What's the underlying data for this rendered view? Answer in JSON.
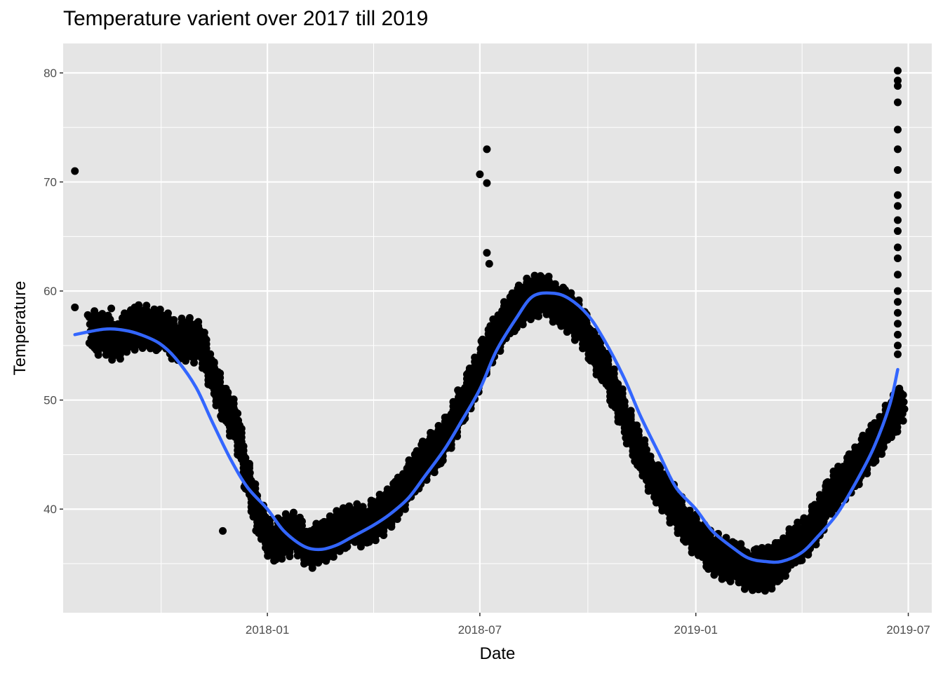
{
  "chart_data": {
    "type": "scatter",
    "title": "Temperature varient over 2017 till 2019",
    "xlabel": "Date",
    "ylabel": "Temperature",
    "x_tick_labels": [
      "2018-01",
      "2018-07",
      "2019-01",
      "2019-07"
    ],
    "y_tick_labels": [
      "40",
      "50",
      "60",
      "70",
      "80"
    ],
    "xlim": [
      "2017-07-11",
      "2019-07-21"
    ],
    "ylim": [
      30.5,
      82.7
    ],
    "grid": true,
    "legend": "none",
    "background_color": "#e5e5e5",
    "grid_color": "#ffffff",
    "point_color": "#000000",
    "trend_color": "#3366ff",
    "series": [
      {
        "kind": "points",
        "band_halfwidth_units": 1.4,
        "x": [
          "2017-08-05",
          "2017-08-15",
          "2017-08-25",
          "2017-09-05",
          "2017-09-15",
          "2017-09-25",
          "2017-10-05",
          "2017-10-15",
          "2017-10-25",
          "2017-11-05",
          "2017-11-15",
          "2017-11-25",
          "2017-12-05",
          "2017-12-15",
          "2017-12-25",
          "2018-01-05",
          "2018-01-15",
          "2018-01-25",
          "2018-02-05",
          "2018-02-15",
          "2018-02-25",
          "2018-03-05",
          "2018-03-15",
          "2018-03-25",
          "2018-04-05",
          "2018-04-15",
          "2018-04-25",
          "2018-05-05",
          "2018-05-15",
          "2018-05-25",
          "2018-06-05",
          "2018-06-15",
          "2018-06-25",
          "2018-07-05",
          "2018-07-15",
          "2018-07-25",
          "2018-08-05",
          "2018-08-15",
          "2018-08-25",
          "2018-09-05",
          "2018-09-15",
          "2018-09-25",
          "2018-10-05",
          "2018-10-15",
          "2018-10-25",
          "2018-11-05",
          "2018-11-15",
          "2018-11-25",
          "2018-12-05",
          "2018-12-15",
          "2018-12-25",
          "2019-01-05",
          "2019-01-15",
          "2019-01-25",
          "2019-02-05",
          "2019-02-15",
          "2019-02-25",
          "2019-03-05",
          "2019-03-15",
          "2019-03-25",
          "2019-04-05",
          "2019-04-15",
          "2019-04-25",
          "2019-05-05",
          "2019-05-15",
          "2019-05-25",
          "2019-06-05",
          "2019-06-15",
          "2019-06-25"
        ],
        "y": [
          56.2,
          56.0,
          55.5,
          56.3,
          56.8,
          56.6,
          56.2,
          55.5,
          55.6,
          55.2,
          52.5,
          49.5,
          47.8,
          43.0,
          39.0,
          37.0,
          37.5,
          37.8,
          36.5,
          36.8,
          37.5,
          38.2,
          38.4,
          38.6,
          39.2,
          40.0,
          41.5,
          43.0,
          44.5,
          45.5,
          47.0,
          49.5,
          51.5,
          54.0,
          56.0,
          57.5,
          58.8,
          59.5,
          59.5,
          59.0,
          58.0,
          57.0,
          55.0,
          53.0,
          50.5,
          47.5,
          45.0,
          43.0,
          41.5,
          40.0,
          38.5,
          37.0,
          36.0,
          35.5,
          35.0,
          34.5,
          34.5,
          34.5,
          35.5,
          36.5,
          37.5,
          39.0,
          41.0,
          42.5,
          43.5,
          45.0,
          46.5,
          48.0,
          49.5
        ]
      },
      {
        "kind": "points",
        "x": [
          "2017-07-21",
          "2017-07-21",
          "2017-08-01",
          "2017-08-10",
          "2017-08-21",
          "2017-09-10",
          "2017-11-24",
          "2018-07-01",
          "2018-07-07",
          "2018-07-07",
          "2018-07-07",
          "2018-07-09",
          "2019-06-22",
          "2019-06-22",
          "2019-06-22",
          "2019-06-22",
          "2019-06-22",
          "2019-06-22",
          "2019-06-22",
          "2019-06-22",
          "2019-06-22",
          "2019-06-22",
          "2019-06-22",
          "2019-06-22",
          "2019-06-22",
          "2019-06-22",
          "2019-06-22",
          "2019-06-22",
          "2019-06-22",
          "2019-06-22",
          "2019-06-22",
          "2019-06-22",
          "2019-06-22"
        ],
        "y": [
          71.0,
          58.5,
          57.8,
          57.5,
          58.4,
          58.5,
          38.0,
          70.7,
          73.0,
          69.9,
          63.5,
          62.5,
          80.2,
          79.3,
          78.8,
          77.3,
          74.8,
          73.0,
          71.1,
          68.8,
          67.8,
          66.5,
          65.5,
          64.0,
          63.0,
          61.5,
          60.0,
          59.0,
          58.0,
          57.0,
          56.0,
          55.0,
          54.2
        ]
      },
      {
        "kind": "smooth",
        "x": [
          "2017-07-21",
          "2017-08-15",
          "2017-09-01",
          "2017-09-15",
          "2017-10-01",
          "2017-10-15",
          "2017-11-01",
          "2017-11-15",
          "2017-12-01",
          "2017-12-15",
          "2018-01-01",
          "2018-01-15",
          "2018-02-01",
          "2018-02-15",
          "2018-03-01",
          "2018-03-15",
          "2018-04-01",
          "2018-04-15",
          "2018-05-01",
          "2018-05-15",
          "2018-06-01",
          "2018-06-15",
          "2018-07-01",
          "2018-07-15",
          "2018-08-01",
          "2018-08-15",
          "2018-09-01",
          "2018-09-15",
          "2018-10-01",
          "2018-10-15",
          "2018-11-01",
          "2018-11-15",
          "2018-12-01",
          "2018-12-15",
          "2019-01-01",
          "2019-01-15",
          "2019-02-01",
          "2019-02-15",
          "2019-03-01",
          "2019-03-15",
          "2019-04-01",
          "2019-04-15",
          "2019-05-01",
          "2019-05-15",
          "2019-06-01",
          "2019-06-15",
          "2019-06-22"
        ],
        "y": [
          56.0,
          56.5,
          56.4,
          56.0,
          55.2,
          53.8,
          51.2,
          48.0,
          44.5,
          42.0,
          40.0,
          38.0,
          36.6,
          36.3,
          36.7,
          37.5,
          38.5,
          39.5,
          41.0,
          43.0,
          45.5,
          48.0,
          51.0,
          54.5,
          57.5,
          59.5,
          59.8,
          59.3,
          57.8,
          55.5,
          52.0,
          48.5,
          45.0,
          42.0,
          40.0,
          38.0,
          36.5,
          35.5,
          35.2,
          35.2,
          36.0,
          37.5,
          39.5,
          42.0,
          45.5,
          49.5,
          52.8
        ]
      }
    ]
  }
}
